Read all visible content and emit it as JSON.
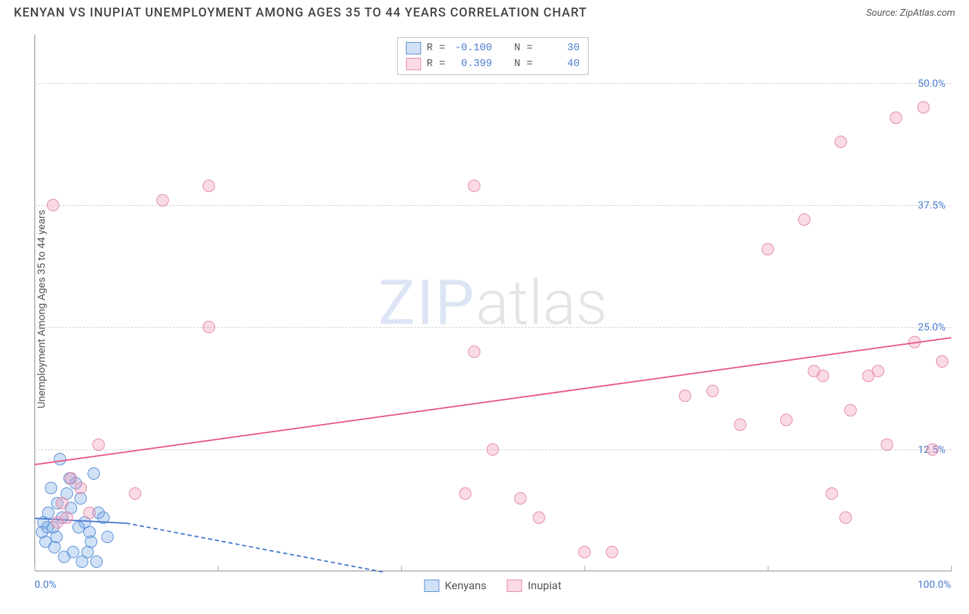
{
  "header": {
    "title": "KENYAN VS INUPIAT UNEMPLOYMENT AMONG AGES 35 TO 44 YEARS CORRELATION CHART",
    "source_prefix": "Source: ",
    "source_name": "ZipAtlas.com"
  },
  "watermark": {
    "zip": "ZIP",
    "atlas": "atlas"
  },
  "chart": {
    "type": "scatter",
    "y_axis_label": "Unemployment Among Ages 35 to 44 years",
    "xlim": [
      0,
      100
    ],
    "ylim": [
      0,
      55
    ],
    "x_ticks": [
      0,
      20,
      40,
      60,
      80,
      100
    ],
    "x_tick_labels": {
      "0": "0.0%",
      "100": "100.0%"
    },
    "y_ticks": [
      12.5,
      25.0,
      37.5,
      50.0
    ],
    "y_tick_labels": [
      "12.5%",
      "25.0%",
      "37.5%",
      "50.0%"
    ],
    "grid_color": "#d0d0d0",
    "axis_color": "#888888",
    "tick_label_color": "#4a7bd0",
    "background_color": "#ffffff",
    "point_radius": 9,
    "series": {
      "kenyans": {
        "label": "Kenyans",
        "fill": "rgba(120,170,230,0.35)",
        "stroke": "#5a8fd6",
        "R": "-0.100",
        "N": "30",
        "trend": {
          "x1": 0,
          "y1": 5.5,
          "x2": 10,
          "y2": 5.0,
          "color": "#4a7bd0",
          "solid_frac": 0.07
        },
        "points": [
          [
            1.0,
            5.0
          ],
          [
            1.5,
            6.0
          ],
          [
            2.0,
            4.5
          ],
          [
            2.5,
            7.0
          ],
          [
            3.0,
            5.5
          ],
          [
            3.5,
            8.0
          ],
          [
            4.0,
            6.5
          ],
          [
            4.5,
            9.0
          ],
          [
            5.0,
            7.5
          ],
          [
            5.5,
            5.0
          ],
          [
            6.0,
            4.0
          ],
          [
            6.5,
            10.0
          ],
          [
            7.0,
            6.0
          ],
          [
            7.5,
            5.5
          ],
          [
            8.0,
            3.5
          ],
          [
            1.2,
            3.0
          ],
          [
            2.2,
            2.5
          ],
          [
            3.2,
            1.5
          ],
          [
            4.2,
            2.0
          ],
          [
            5.2,
            1.0
          ],
          [
            6.2,
            3.0
          ],
          [
            2.8,
            11.5
          ],
          [
            3.8,
            9.5
          ],
          [
            1.8,
            8.5
          ],
          [
            0.8,
            4.0
          ],
          [
            1.4,
            4.5
          ],
          [
            2.4,
            3.5
          ],
          [
            4.8,
            4.5
          ],
          [
            5.8,
            2.0
          ],
          [
            6.8,
            1.0
          ]
        ]
      },
      "inupiat": {
        "label": "Inupiat",
        "fill": "rgba(240,150,180,0.35)",
        "stroke": "#e48aa8",
        "R": "0.399",
        "N": "40",
        "trend": {
          "x1": 0,
          "y1": 11.0,
          "x2": 100,
          "y2": 24.0,
          "color": "#e75a8b",
          "solid_frac": 1.0
        },
        "points": [
          [
            2.0,
            37.5
          ],
          [
            14.0,
            38.0
          ],
          [
            19.0,
            39.5
          ],
          [
            19.0,
            25.0
          ],
          [
            48.0,
            39.5
          ],
          [
            48.0,
            22.5
          ],
          [
            7.0,
            13.0
          ],
          [
            11.0,
            8.0
          ],
          [
            4.0,
            9.5
          ],
          [
            5.0,
            8.5
          ],
          [
            3.0,
            7.0
          ],
          [
            6.0,
            6.0
          ],
          [
            3.5,
            5.5
          ],
          [
            2.5,
            5.0
          ],
          [
            47.0,
            8.0
          ],
          [
            50.0,
            12.5
          ],
          [
            53.0,
            7.5
          ],
          [
            55.0,
            5.5
          ],
          [
            60.0,
            2.0
          ],
          [
            63.0,
            2.0
          ],
          [
            71.0,
            18.0
          ],
          [
            74.0,
            18.5
          ],
          [
            77.0,
            15.0
          ],
          [
            80.0,
            33.0
          ],
          [
            82.0,
            15.5
          ],
          [
            84.0,
            36.0
          ],
          [
            86.0,
            20.0
          ],
          [
            87.0,
            8.0
          ],
          [
            88.0,
            44.0
          ],
          [
            89.0,
            16.5
          ],
          [
            92.0,
            20.5
          ],
          [
            94.0,
            46.5
          ],
          [
            96.0,
            23.5
          ],
          [
            97.0,
            47.5
          ],
          [
            98.0,
            12.5
          ],
          [
            99.0,
            21.5
          ],
          [
            88.5,
            5.5
          ],
          [
            91.0,
            20.0
          ],
          [
            93.0,
            13.0
          ],
          [
            85.0,
            20.5
          ]
        ]
      }
    }
  },
  "stats_legend": {
    "R_label": "R =",
    "N_label": "N ="
  },
  "bottom_legend": {
    "items": [
      "kenyans",
      "inupiat"
    ]
  }
}
